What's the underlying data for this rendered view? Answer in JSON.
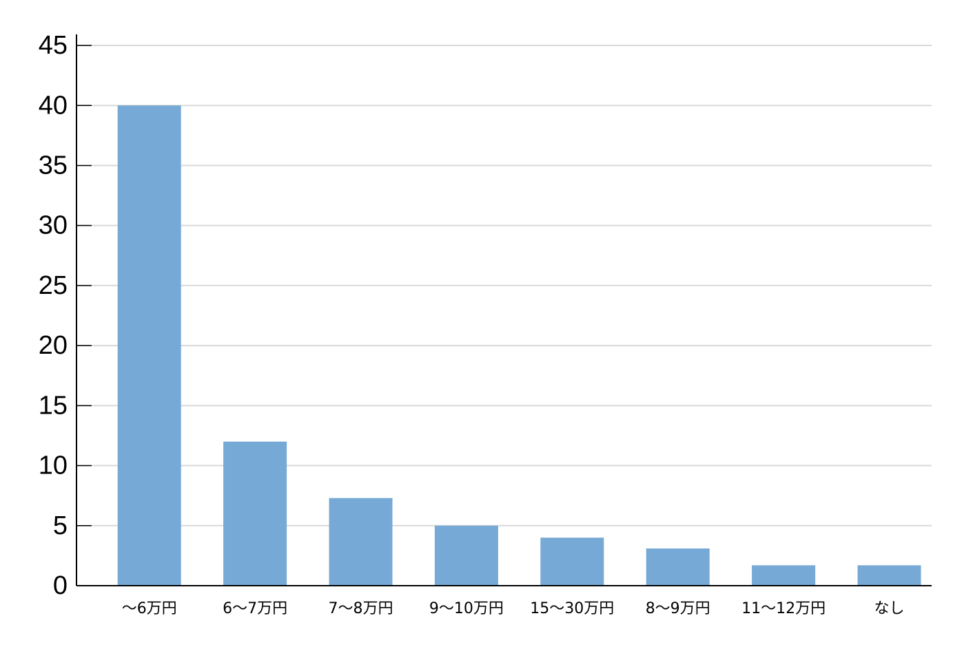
{
  "chart_data": {
    "type": "bar",
    "categories": [
      "〜6万円",
      "6〜7万円",
      "7〜8万円",
      "9〜10万円",
      "15〜30万円",
      "8〜9万円",
      "11〜12万円",
      "なし"
    ],
    "values": [
      40,
      12,
      7.3,
      5,
      4,
      3.1,
      1.7,
      1.7
    ],
    "color": "#76a9d6",
    "ylim": [
      0,
      45
    ],
    "yticks": [
      0,
      5,
      10,
      15,
      20,
      25,
      30,
      35,
      40,
      45
    ],
    "grid": true
  }
}
